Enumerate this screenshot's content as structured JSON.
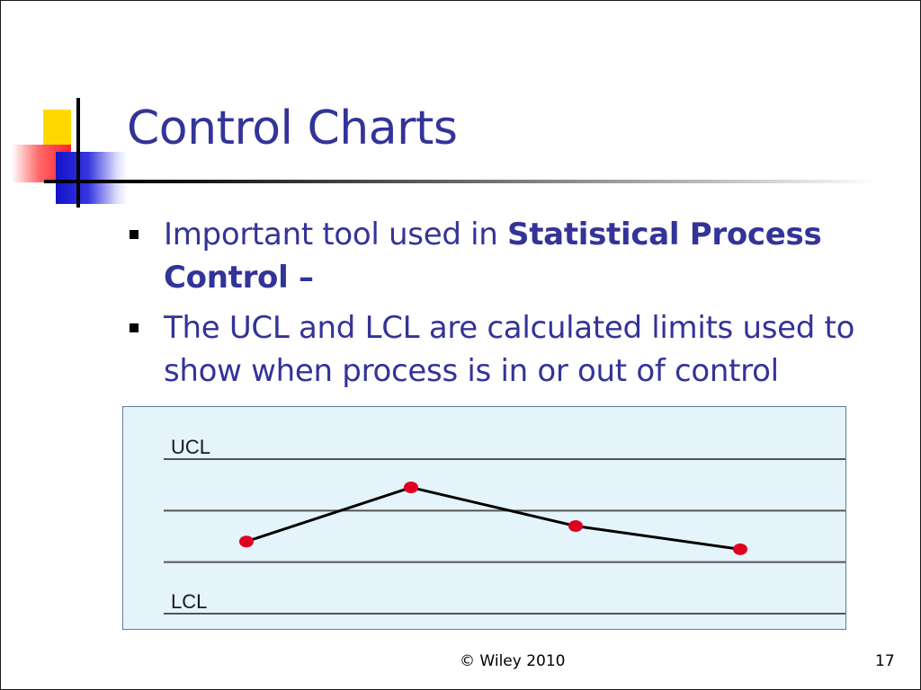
{
  "slide": {
    "title": "Control Charts",
    "bullets": [
      {
        "text": "Important tool used in ",
        "bold": "Statistical Process Control",
        "tail": " –"
      },
      {
        "text": "The UCL and LCL are calculated limits used to show when process is in or out of control"
      }
    ],
    "footer": "© Wiley 2010",
    "page_number": "17"
  },
  "chart_data": {
    "type": "line",
    "title": "",
    "limits": [
      {
        "label": "UCL",
        "value": 3
      },
      {
        "label": "",
        "value": 2
      },
      {
        "label": "",
        "value": 1
      },
      {
        "label": "LCL",
        "value": 0
      }
    ],
    "x": [
      1,
      2,
      3,
      4
    ],
    "values": [
      1.4,
      2.45,
      1.7,
      1.25
    ],
    "ylim": [
      0,
      3
    ],
    "colors": {
      "line": "#000000",
      "marker": "#dd0020",
      "limit_line": "#555555",
      "background": "#e5f3fb"
    }
  }
}
